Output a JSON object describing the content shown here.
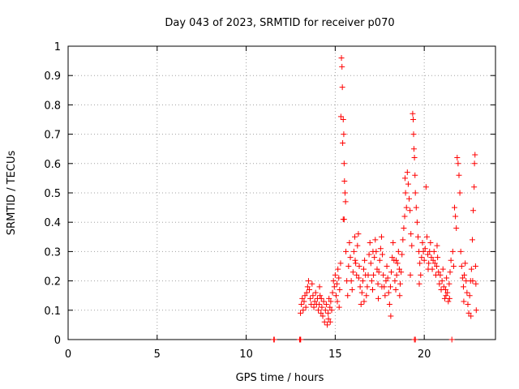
{
  "chart_data": {
    "type": "scatter",
    "title": "Day 043 of 2023, SRMTID for receiver p070",
    "xlabel": "GPS time / hours",
    "ylabel": "SRMTID / TECUs",
    "xlim": [
      0,
      24
    ],
    "ylim": [
      0,
      1
    ],
    "xticks": [
      0,
      5,
      10,
      15,
      20
    ],
    "yticks": [
      0,
      0.1,
      0.2,
      0.3,
      0.4,
      0.5,
      0.6,
      0.7,
      0.8,
      0.9,
      1
    ],
    "ytick_labels": [
      "0",
      "0.1",
      "0.2",
      "0.3",
      "0.4",
      "0.5",
      "0.6",
      "0.7",
      "0.8",
      "0.9",
      "1"
    ],
    "grid": true,
    "marker": "+",
    "color": "#ff0000",
    "series": [
      {
        "name": "SRMTID",
        "points": [
          [
            11.55,
            0.0
          ],
          [
            11.58,
            0.0
          ],
          [
            13.0,
            0.0
          ],
          [
            13.03,
            0.0
          ],
          [
            13.06,
            0.0
          ],
          [
            13.05,
            0.09
          ],
          [
            13.1,
            0.12
          ],
          [
            13.15,
            0.14
          ],
          [
            13.2,
            0.1
          ],
          [
            13.25,
            0.13
          ],
          [
            13.3,
            0.15
          ],
          [
            13.35,
            0.11
          ],
          [
            13.4,
            0.16
          ],
          [
            13.45,
            0.18
          ],
          [
            13.5,
            0.2
          ],
          [
            13.55,
            0.17
          ],
          [
            13.6,
            0.14
          ],
          [
            13.65,
            0.12
          ],
          [
            13.7,
            0.19
          ],
          [
            13.75,
            0.15
          ],
          [
            13.8,
            0.11
          ],
          [
            13.85,
            0.13
          ],
          [
            13.9,
            0.16
          ],
          [
            13.95,
            0.12
          ],
          [
            14.0,
            0.14
          ],
          [
            14.05,
            0.1
          ],
          [
            14.1,
            0.12
          ],
          [
            14.15,
            0.15
          ],
          [
            14.2,
            0.09
          ],
          [
            14.25,
            0.11
          ],
          [
            14.3,
            0.08
          ],
          [
            14.35,
            0.13
          ],
          [
            14.4,
            0.06
          ],
          [
            14.45,
            0.1
          ],
          [
            14.5,
            0.12
          ],
          [
            14.55,
            0.05
          ],
          [
            14.6,
            0.09
          ],
          [
            14.65,
            0.14
          ],
          [
            14.7,
            0.11
          ],
          [
            14.75,
            0.13
          ],
          [
            14.8,
            0.1
          ],
          [
            14.85,
            0.16
          ],
          [
            14.9,
            0.2
          ],
          [
            14.95,
            0.18
          ],
          [
            15.0,
            0.22
          ],
          [
            15.05,
            0.15
          ],
          [
            15.1,
            0.19
          ],
          [
            15.15,
            0.24
          ],
          [
            15.2,
            0.21
          ],
          [
            15.25,
            0.17
          ],
          [
            15.3,
            0.26
          ],
          [
            15.32,
            0.76
          ],
          [
            15.35,
            0.96
          ],
          [
            15.38,
            0.93
          ],
          [
            15.4,
            0.86
          ],
          [
            15.42,
            0.67
          ],
          [
            15.45,
            0.75
          ],
          [
            15.48,
            0.7
          ],
          [
            15.5,
            0.6
          ],
          [
            15.52,
            0.54
          ],
          [
            15.55,
            0.5
          ],
          [
            15.58,
            0.47
          ],
          [
            15.45,
            0.41
          ],
          [
            15.5,
            0.41
          ],
          [
            15.6,
            0.3
          ],
          [
            15.65,
            0.2
          ],
          [
            15.7,
            0.15
          ],
          [
            15.75,
            0.25
          ],
          [
            15.8,
            0.33
          ],
          [
            15.85,
            0.28
          ],
          [
            15.9,
            0.2
          ],
          [
            15.95,
            0.17
          ],
          [
            16.0,
            0.23
          ],
          [
            16.05,
            0.3
          ],
          [
            16.1,
            0.35
          ],
          [
            16.15,
            0.26
          ],
          [
            16.2,
            0.22
          ],
          [
            16.25,
            0.32
          ],
          [
            16.3,
            0.36
          ],
          [
            16.35,
            0.25
          ],
          [
            16.4,
            0.18
          ],
          [
            16.45,
            0.12
          ],
          [
            16.5,
            0.16
          ],
          [
            16.55,
            0.2
          ],
          [
            16.6,
            0.24
          ],
          [
            16.65,
            0.27
          ],
          [
            16.7,
            0.22
          ],
          [
            16.75,
            0.15
          ],
          [
            16.8,
            0.18
          ],
          [
            16.85,
            0.22
          ],
          [
            16.9,
            0.29
          ],
          [
            16.95,
            0.33
          ],
          [
            17.0,
            0.26
          ],
          [
            17.05,
            0.2
          ],
          [
            17.1,
            0.17
          ],
          [
            17.15,
            0.22
          ],
          [
            17.2,
            0.28
          ],
          [
            17.25,
            0.34
          ],
          [
            17.3,
            0.3
          ],
          [
            17.35,
            0.24
          ],
          [
            17.4,
            0.19
          ],
          [
            17.45,
            0.23
          ],
          [
            17.5,
            0.27
          ],
          [
            17.55,
            0.31
          ],
          [
            17.6,
            0.35
          ],
          [
            17.65,
            0.29
          ],
          [
            17.7,
            0.22
          ],
          [
            17.75,
            0.18
          ],
          [
            17.8,
            0.15
          ],
          [
            17.85,
            0.2
          ],
          [
            17.9,
            0.25
          ],
          [
            17.95,
            0.21
          ],
          [
            18.0,
            0.16
          ],
          [
            18.05,
            0.12
          ],
          [
            18.1,
            0.18
          ],
          [
            18.15,
            0.23
          ],
          [
            18.2,
            0.28
          ],
          [
            18.25,
            0.33
          ],
          [
            18.3,
            0.27
          ],
          [
            18.35,
            0.2
          ],
          [
            18.4,
            0.17
          ],
          [
            18.45,
            0.22
          ],
          [
            18.5,
            0.26
          ],
          [
            18.55,
            0.3
          ],
          [
            18.6,
            0.24
          ],
          [
            18.65,
            0.19
          ],
          [
            18.7,
            0.23
          ],
          [
            18.75,
            0.29
          ],
          [
            18.8,
            0.34
          ],
          [
            18.85,
            0.38
          ],
          [
            18.9,
            0.42
          ],
          [
            18.92,
            0.55
          ],
          [
            18.95,
            0.5
          ],
          [
            19.0,
            0.45
          ],
          [
            19.05,
            0.57
          ],
          [
            19.1,
            0.53
          ],
          [
            19.15,
            0.48
          ],
          [
            19.2,
            0.44
          ],
          [
            19.25,
            0.36
          ],
          [
            19.3,
            0.32
          ],
          [
            19.35,
            0.77
          ],
          [
            19.38,
            0.75
          ],
          [
            19.4,
            0.7
          ],
          [
            19.42,
            0.65
          ],
          [
            19.45,
            0.62
          ],
          [
            19.48,
            0.56
          ],
          [
            19.5,
            0.5
          ],
          [
            19.55,
            0.45
          ],
          [
            19.45,
            0.0
          ],
          [
            19.5,
            0.0
          ],
          [
            19.6,
            0.4
          ],
          [
            19.65,
            0.35
          ],
          [
            19.7,
            0.3
          ],
          [
            19.75,
            0.26
          ],
          [
            19.8,
            0.22
          ],
          [
            19.85,
            0.28
          ],
          [
            19.9,
            0.33
          ],
          [
            19.95,
            0.3
          ],
          [
            20.0,
            0.27
          ],
          [
            20.05,
            0.31
          ],
          [
            20.1,
            0.52
          ],
          [
            20.15,
            0.35
          ],
          [
            20.2,
            0.29
          ],
          [
            20.25,
            0.26
          ],
          [
            20.3,
            0.3
          ],
          [
            20.35,
            0.33
          ],
          [
            20.4,
            0.28
          ],
          [
            20.45,
            0.24
          ],
          [
            20.5,
            0.27
          ],
          [
            20.55,
            0.3
          ],
          [
            20.6,
            0.26
          ],
          [
            20.65,
            0.22
          ],
          [
            20.7,
            0.25
          ],
          [
            20.75,
            0.28
          ],
          [
            20.8,
            0.23
          ],
          [
            20.85,
            0.19
          ],
          [
            20.9,
            0.22
          ],
          [
            20.95,
            0.17
          ],
          [
            21.0,
            0.2
          ],
          [
            21.05,
            0.24
          ],
          [
            21.1,
            0.18
          ],
          [
            21.15,
            0.14
          ],
          [
            21.2,
            0.17
          ],
          [
            21.25,
            0.21
          ],
          [
            21.3,
            0.16
          ],
          [
            21.35,
            0.13
          ],
          [
            21.4,
            0.19
          ],
          [
            21.45,
            0.23
          ],
          [
            21.5,
            0.27
          ],
          [
            21.55,
            0.0
          ],
          [
            21.6,
            0.3
          ],
          [
            21.65,
            0.25
          ],
          [
            21.7,
            0.45
          ],
          [
            21.75,
            0.42
          ],
          [
            21.8,
            0.38
          ],
          [
            21.85,
            0.62
          ],
          [
            21.9,
            0.6
          ],
          [
            21.95,
            0.56
          ],
          [
            22.0,
            0.5
          ],
          [
            22.05,
            0.3
          ],
          [
            22.1,
            0.25
          ],
          [
            22.15,
            0.21
          ],
          [
            22.2,
            0.18
          ],
          [
            22.25,
            0.22
          ],
          [
            22.3,
            0.26
          ],
          [
            22.35,
            0.2
          ],
          [
            22.4,
            0.16
          ],
          [
            22.45,
            0.12
          ],
          [
            22.5,
            0.09
          ],
          [
            22.55,
            0.15
          ],
          [
            22.6,
            0.2
          ],
          [
            22.65,
            0.24
          ],
          [
            22.7,
            0.34
          ],
          [
            22.75,
            0.44
          ],
          [
            22.8,
            0.52
          ],
          [
            22.82,
            0.6
          ],
          [
            22.85,
            0.63
          ],
          [
            22.88,
            0.25
          ],
          [
            22.9,
            0.19
          ],
          [
            22.92,
            0.1
          ],
          [
            14.12,
            0.18
          ],
          [
            14.22,
            0.14
          ],
          [
            14.62,
            0.07
          ],
          [
            14.72,
            0.06
          ],
          [
            15.12,
            0.13
          ],
          [
            15.22,
            0.11
          ],
          [
            16.12,
            0.27
          ],
          [
            16.32,
            0.21
          ],
          [
            17.12,
            0.3
          ],
          [
            17.42,
            0.14
          ],
          [
            18.12,
            0.08
          ],
          [
            18.42,
            0.27
          ],
          [
            19.22,
            0.22
          ],
          [
            19.72,
            0.19
          ],
          [
            20.22,
            0.24
          ],
          [
            20.72,
            0.32
          ],
          [
            21.22,
            0.15
          ],
          [
            21.42,
            0.14
          ],
          [
            22.22,
            0.13
          ],
          [
            22.62,
            0.08
          ],
          [
            22.72,
            0.2
          ],
          [
            16.62,
            0.13
          ],
          [
            17.62,
            0.18
          ],
          [
            18.62,
            0.15
          ]
        ]
      }
    ]
  }
}
